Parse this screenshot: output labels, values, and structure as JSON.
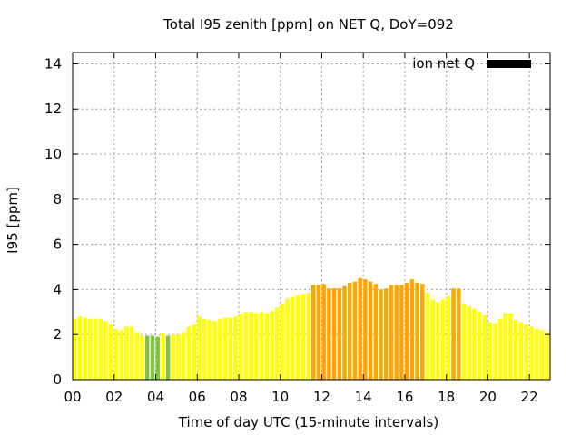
{
  "chart_data": {
    "type": "bar",
    "title": "Total I95 zenith [ppm] on NET Q, DoY=092",
    "xlabel": "Time of day UTC (15-minute intervals)",
    "ylabel": "I95 [ppm]",
    "legend": {
      "label": "ion net Q",
      "placement": "top-right",
      "color": "#000000"
    },
    "xlim": [
      0,
      23
    ],
    "ylim": [
      0,
      14.5
    ],
    "x_ticks": [
      0,
      2,
      4,
      6,
      8,
      10,
      12,
      14,
      16,
      18,
      20,
      22
    ],
    "x_tick_labels": [
      "00",
      "02",
      "04",
      "06",
      "08",
      "10",
      "12",
      "14",
      "16",
      "18",
      "20",
      "22"
    ],
    "y_ticks": [
      0,
      2,
      4,
      6,
      8,
      10,
      12,
      14
    ],
    "y_tick_labels": [
      "0",
      "2",
      "4",
      "6",
      "8",
      "10",
      "12",
      "14"
    ],
    "grid": true,
    "colors": {
      "low": "#7dc242",
      "medium": "#ffff00",
      "high": "#ffa500"
    },
    "series": [
      {
        "x": [
          0,
          0.25,
          0.5,
          0.75,
          1,
          1.25,
          1.5,
          1.75,
          2,
          2.25,
          2.5,
          2.75,
          3,
          3.25,
          3.5,
          3.75,
          4,
          4.25,
          4.5,
          4.75,
          5,
          5.25,
          5.5,
          5.75,
          6,
          6.25,
          6.5,
          6.75,
          7,
          7.25,
          7.5,
          7.75,
          8,
          8.25,
          8.5,
          8.75,
          9,
          9.25,
          9.5,
          9.75,
          10,
          10.25,
          10.5,
          10.75,
          11,
          11.25,
          11.5,
          11.75,
          12,
          12.25,
          12.5,
          12.75,
          13,
          13.25,
          13.5,
          13.75,
          14,
          14.25,
          14.5,
          14.75,
          15,
          15.25,
          15.5,
          15.75,
          16,
          16.25,
          16.5,
          16.75,
          17,
          17.25,
          17.5,
          17.75,
          18,
          18.25,
          18.5,
          18.75,
          19,
          19.25,
          19.5,
          19.75,
          20,
          20.25,
          20.5,
          20.75,
          21,
          21.25,
          21.5,
          21.75,
          22,
          22.25,
          22.5,
          22.75
        ],
        "values": [
          2.7,
          2.8,
          2.75,
          2.7,
          2.7,
          2.7,
          2.6,
          2.45,
          2.25,
          2.2,
          2.35,
          2.35,
          2.1,
          1.95,
          1.95,
          1.95,
          1.9,
          2.05,
          1.95,
          2.0,
          2.0,
          2.1,
          2.35,
          2.45,
          2.8,
          2.7,
          2.65,
          2.6,
          2.7,
          2.75,
          2.75,
          2.8,
          2.9,
          3.0,
          3.0,
          2.95,
          3.0,
          2.95,
          3.05,
          3.2,
          3.35,
          3.6,
          3.65,
          3.75,
          3.8,
          3.85,
          4.2,
          4.2,
          4.25,
          4.05,
          4.05,
          4.05,
          4.15,
          4.3,
          4.35,
          4.5,
          4.45,
          4.35,
          4.25,
          4.0,
          4.05,
          4.2,
          4.2,
          4.2,
          4.3,
          4.45,
          4.3,
          4.25,
          3.85,
          3.55,
          3.45,
          3.55,
          3.7,
          4.05,
          4.05,
          3.35,
          3.25,
          3.15,
          3.0,
          2.85,
          2.55,
          2.5,
          2.7,
          2.95,
          2.95,
          2.65,
          2.55,
          2.45,
          2.35,
          2.25,
          2.2,
          2.1
        ],
        "levels": [
          "medium",
          "medium",
          "medium",
          "medium",
          "medium",
          "medium",
          "medium",
          "medium",
          "medium",
          "medium",
          "medium",
          "medium",
          "medium",
          "medium",
          "low",
          "low",
          "low",
          "medium",
          "low",
          "medium",
          "medium",
          "medium",
          "medium",
          "medium",
          "medium",
          "medium",
          "medium",
          "medium",
          "medium",
          "medium",
          "medium",
          "medium",
          "medium",
          "medium",
          "medium",
          "medium",
          "medium",
          "medium",
          "medium",
          "medium",
          "medium",
          "medium",
          "medium",
          "medium",
          "medium",
          "medium",
          "high",
          "high",
          "high",
          "high",
          "high",
          "high",
          "high",
          "high",
          "high",
          "high",
          "high",
          "high",
          "high",
          "high",
          "high",
          "high",
          "high",
          "high",
          "high",
          "high",
          "high",
          "high",
          "medium",
          "medium",
          "medium",
          "medium",
          "medium",
          "high",
          "high",
          "medium",
          "medium",
          "medium",
          "medium",
          "medium",
          "medium",
          "medium",
          "medium",
          "medium",
          "medium",
          "medium",
          "medium",
          "medium",
          "medium",
          "medium",
          "medium",
          "medium"
        ]
      }
    ]
  }
}
